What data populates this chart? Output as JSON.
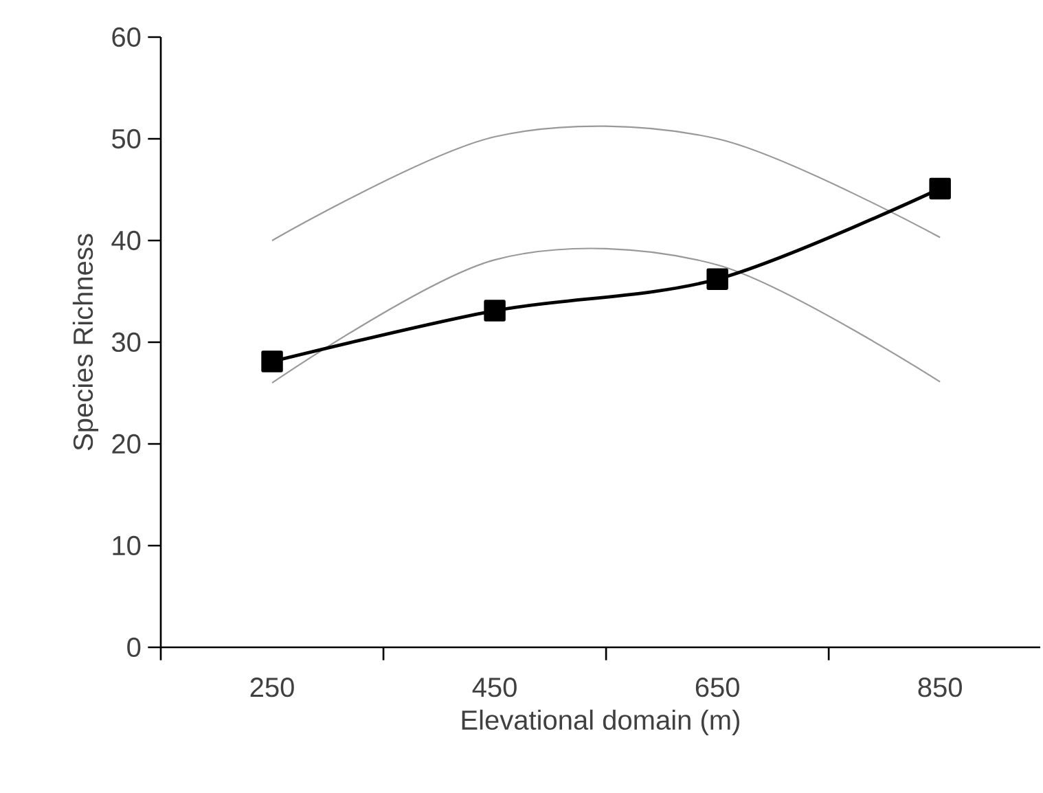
{
  "chart_data": {
    "type": "line",
    "xlabel": "Elevational domain (m)",
    "ylabel": "Species Richness",
    "categories": [
      "250",
      "450",
      "650",
      "850"
    ],
    "series": [
      {
        "color": "#999999",
        "values": [
          40,
          50.2,
          50,
          40.3
        ],
        "marker": "none"
      },
      {
        "color": "#999999",
        "values": [
          26,
          38.1,
          37.6,
          26.1
        ],
        "marker": "none"
      },
      {
        "color": "#000000",
        "values": [
          28.1,
          33.1,
          36.2,
          45.1
        ],
        "marker": "square"
      }
    ],
    "ylim": [
      0,
      60
    ],
    "yticks": [
      0,
      10,
      20,
      30,
      40,
      50,
      60
    ]
  }
}
